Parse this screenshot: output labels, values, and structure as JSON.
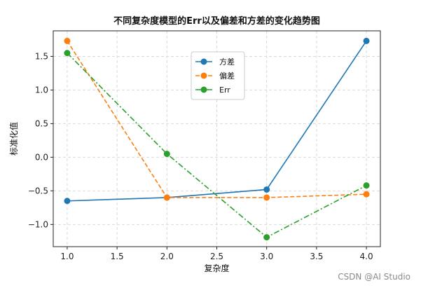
{
  "chart_data": {
    "type": "line",
    "title": "不同复杂度模型的Err以及偏差和方差的变化趋势图",
    "xlabel": "复杂度",
    "ylabel": "标准化值",
    "x": [
      1,
      2,
      3,
      4
    ],
    "xlim": [
      0.86,
      4.14
    ],
    "ylim": [
      -1.33,
      1.88
    ],
    "xticks": [
      1.0,
      1.5,
      2.0,
      2.5,
      3.0,
      3.5,
      4.0
    ],
    "xtick_labels": [
      "1.0",
      "1.5",
      "2.0",
      "2.5",
      "3.0",
      "3.5",
      "4.0"
    ],
    "yticks": [
      -1.0,
      -0.5,
      0.0,
      0.5,
      1.0,
      1.5
    ],
    "ytick_labels": [
      "−1.0",
      "−0.5",
      "0.0",
      "0.5",
      "1.0",
      "1.5"
    ],
    "grid": true,
    "legend_position": "top-center",
    "series": [
      {
        "name": "方差",
        "values": [
          -0.65,
          -0.6,
          -0.48,
          1.73
        ],
        "color": "#1f77b4",
        "line_style": "solid"
      },
      {
        "name": "偏差",
        "values": [
          1.73,
          -0.6,
          -0.6,
          -0.55
        ],
        "color": "#ff7f0e",
        "line_style": "dashed"
      },
      {
        "name": "Err",
        "values": [
          1.55,
          0.05,
          -1.19,
          -0.42
        ],
        "color": "#2ca02c",
        "line_style": "dashdot"
      }
    ]
  },
  "watermark": "CSDN @AI Studio"
}
